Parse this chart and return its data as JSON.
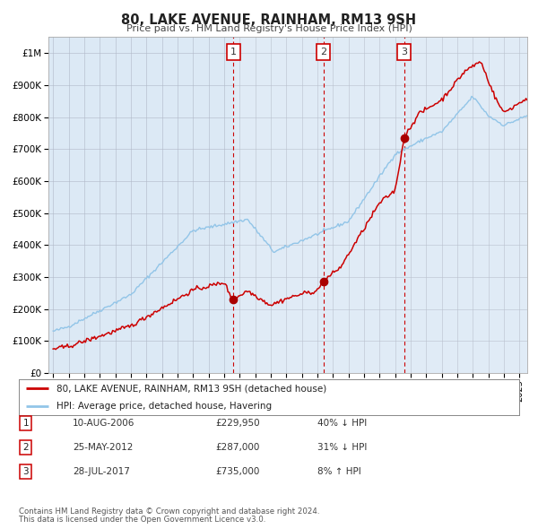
{
  "title": "80, LAKE AVENUE, RAINHAM, RM13 9SH",
  "subtitle": "Price paid vs. HM Land Registry's House Price Index (HPI)",
  "background_color": "#ffffff",
  "plot_bg_color": "#dce9f5",
  "yticks": [
    0,
    100000,
    200000,
    300000,
    400000,
    500000,
    600000,
    700000,
    800000,
    900000,
    1000000
  ],
  "ytick_labels": [
    "£0",
    "£100K",
    "£200K",
    "£300K",
    "£400K",
    "£500K",
    "£600K",
    "£700K",
    "£800K",
    "£900K",
    "£1M"
  ],
  "ylim": [
    0,
    1050000
  ],
  "xlim_start": 1994.7,
  "xlim_end": 2025.5,
  "hpi_color": "#92c5e8",
  "price_color": "#cc0000",
  "marker_color": "#aa0000",
  "dashed_line_color": "#cc0000",
  "sale_dates": [
    2006.608,
    2012.397,
    2017.573
  ],
  "sale_prices": [
    229950,
    287000,
    735000
  ],
  "sale_labels": [
    "1",
    "2",
    "3"
  ],
  "legend_entry1": "80, LAKE AVENUE, RAINHAM, RM13 9SH (detached house)",
  "legend_entry2": "HPI: Average price, detached house, Havering",
  "table_rows": [
    [
      "1",
      "10-AUG-2006",
      "£229,950",
      "40% ↓ HPI"
    ],
    [
      "2",
      "25-MAY-2012",
      "£287,000",
      "31% ↓ HPI"
    ],
    [
      "3",
      "28-JUL-2017",
      "£735,000",
      "8% ↑ HPI"
    ]
  ],
  "footnote1": "Contains HM Land Registry data © Crown copyright and database right 2024.",
  "footnote2": "This data is licensed under the Open Government Licence v3.0."
}
